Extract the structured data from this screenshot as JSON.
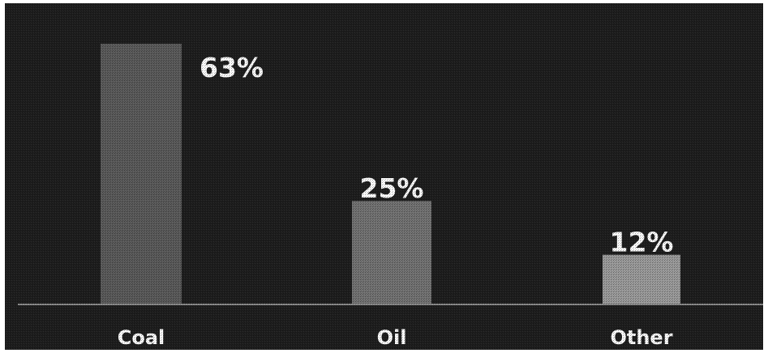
{
  "chart_data": {
    "type": "bar",
    "categories": [
      "Coal",
      "Oil",
      "Other"
    ],
    "values": [
      63,
      25,
      12
    ],
    "value_labels": [
      "63%",
      "25%",
      "12%"
    ],
    "ylim": [
      0,
      63
    ],
    "grid": false,
    "legend": "none",
    "colors": {
      "background": "#1e1e1e",
      "baseline": "#8a8a8a",
      "bars": [
        "#5a5a5a",
        "#727272",
        "#9a9a9a"
      ],
      "text": "#ffffff"
    }
  }
}
